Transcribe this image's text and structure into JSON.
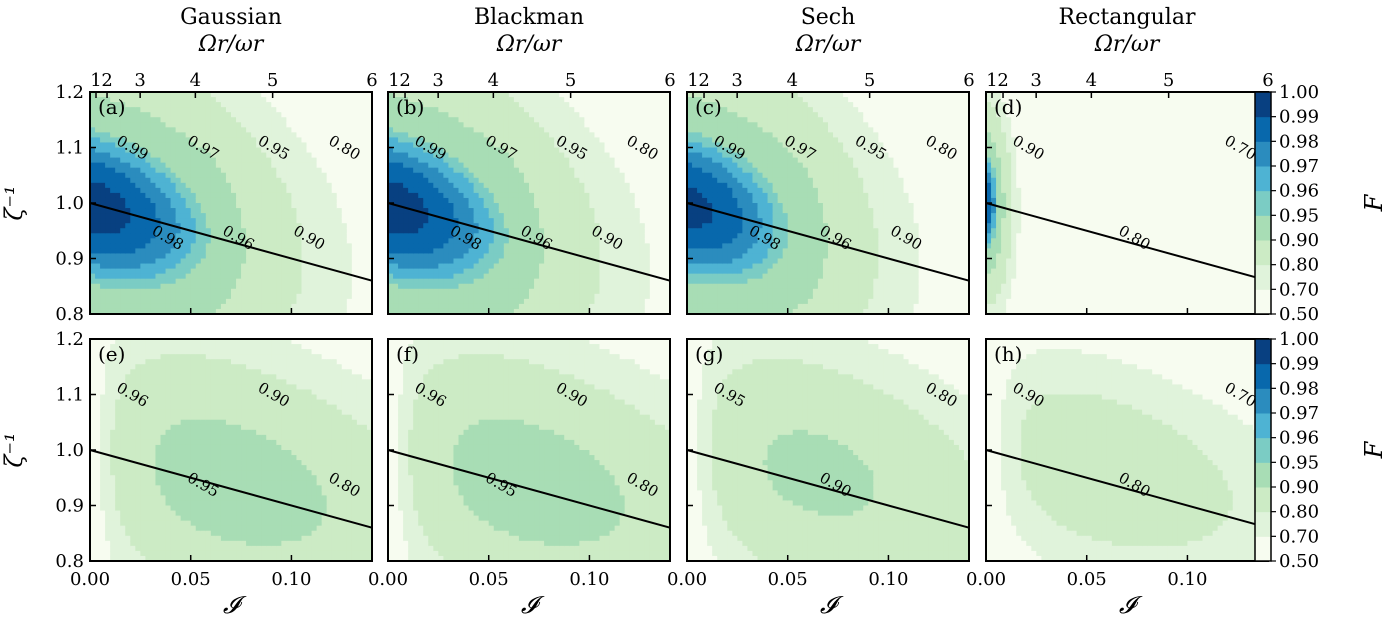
{
  "figure": {
    "column_titles": [
      "Gaussian",
      "Blackman",
      "Sech",
      "Rectangular"
    ],
    "top_axis_label": "Ωr/ωr",
    "x_axis_label": "𝓘",
    "y_axis_label": "ζ⁻¹",
    "colorbar_label": "F"
  },
  "chart_data": {
    "type": "heatmap",
    "description_of_grid": "2 rows x 4 columns of filled contour panels of fidelity F vs intensity I (x) and inverse squeezing zeta^-1 (y)",
    "xlim": [
      0.0,
      0.14
    ],
    "ylim": [
      0.8,
      1.2
    ],
    "x_ticks": [
      0.0,
      0.05,
      0.1
    ],
    "x_tick_labels": [
      "0.00",
      "0.05",
      "0.10"
    ],
    "y_ticks": [
      0.8,
      0.9,
      1.0,
      1.1,
      1.2
    ],
    "y_tick_labels": [
      "0.8",
      "0.9",
      "1.0",
      "1.1",
      "1.2"
    ],
    "top_axis_ticks": [
      "1",
      "2",
      "3",
      "4",
      "5",
      "6"
    ],
    "colorbar": {
      "levels": [
        0.5,
        0.7,
        0.8,
        0.9,
        0.95,
        0.96,
        0.97,
        0.98,
        0.99,
        1.0
      ],
      "tick_labels": [
        "1.00",
        "0.99",
        "0.98",
        "0.97",
        "0.96",
        "0.95",
        "0.90",
        "0.80",
        "0.70",
        "0.50"
      ],
      "colors": [
        "#f7fcf0",
        "#e0f3db",
        "#ccebc5",
        "#a8ddb5",
        "#7bccc4",
        "#4eb3d3",
        "#2b8cbe",
        "#0868ac",
        "#084081"
      ]
    },
    "reference_line": {
      "from": [
        0.0,
        1.0
      ],
      "to": [
        0.14,
        0.86
      ]
    },
    "panels": [
      {
        "label": "(a)",
        "row": 0,
        "col": 0,
        "peak": [
          0.005,
          0.99
        ],
        "optimal_F": 0.995,
        "contour_labels": [
          "0.99",
          "0.98",
          "0.97",
          "0.96",
          "0.95",
          "0.90",
          "0.80"
        ]
      },
      {
        "label": "(b)",
        "row": 0,
        "col": 1,
        "peak": [
          0.005,
          0.99
        ],
        "optimal_F": 0.995,
        "contour_labels": [
          "0.99",
          "0.98",
          "0.97",
          "0.96",
          "0.95",
          "0.90",
          "0.80"
        ]
      },
      {
        "label": "(c)",
        "row": 0,
        "col": 2,
        "peak": [
          0.005,
          0.99
        ],
        "optimal_F": 0.993,
        "contour_labels": [
          "0.99",
          "0.98",
          "0.97",
          "0.96",
          "0.95",
          "0.90",
          "0.80"
        ]
      },
      {
        "label": "(d)",
        "row": 0,
        "col": 3,
        "peak": [
          0.002,
          1.0
        ],
        "optimal_F": 0.99,
        "contour_labels": [
          "0.90",
          "0.80",
          "0.70"
        ]
      },
      {
        "label": "(e)",
        "row": 1,
        "col": 0,
        "peak": [
          0.05,
          0.96
        ],
        "optimal_F": 0.965,
        "contour_labels": [
          "0.96",
          "0.95",
          "0.90",
          "0.80"
        ]
      },
      {
        "label": "(f)",
        "row": 1,
        "col": 1,
        "peak": [
          0.05,
          0.96
        ],
        "optimal_F": 0.965,
        "contour_labels": [
          "0.96",
          "0.95",
          "0.90",
          "0.80"
        ]
      },
      {
        "label": "(g)",
        "row": 1,
        "col": 2,
        "peak": [
          0.045,
          0.975
        ],
        "optimal_F": 0.952,
        "contour_labels": [
          "0.95",
          "0.90",
          "0.80"
        ]
      },
      {
        "label": "(h)",
        "row": 1,
        "col": 3,
        "peak": [
          0.03,
          0.99
        ],
        "optimal_F": 0.91,
        "contour_labels": [
          "0.90",
          "0.80",
          "0.70"
        ]
      }
    ]
  }
}
